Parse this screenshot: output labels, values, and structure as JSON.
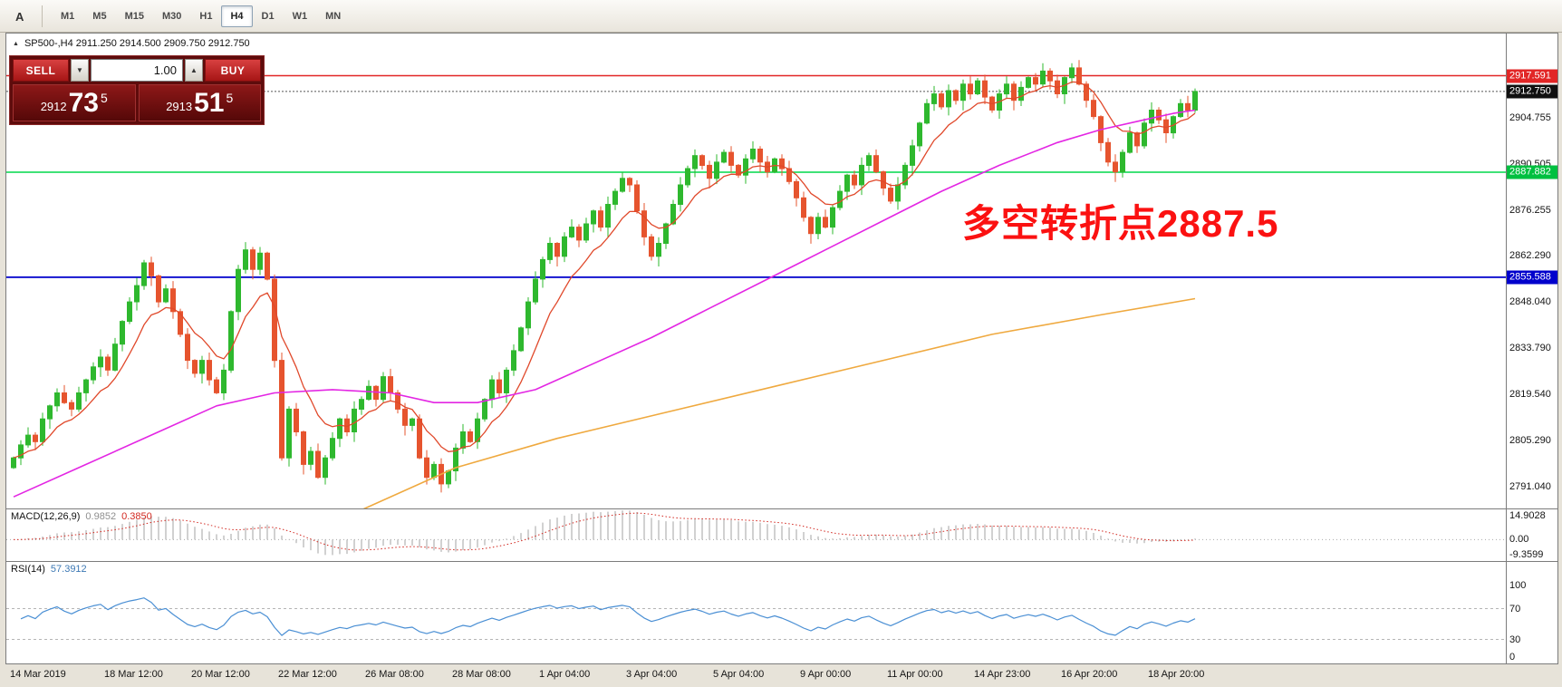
{
  "toolbar": {
    "icons": [
      {
        "name": "charts-candle-icon"
      },
      {
        "name": "indicators-icon"
      },
      {
        "name": "label-a-icon"
      },
      {
        "name": "text-box-icon"
      },
      {
        "name": "draw-objects-icon"
      }
    ],
    "timeframes": [
      {
        "label": "M1",
        "active": false
      },
      {
        "label": "M5",
        "active": false
      },
      {
        "label": "M15",
        "active": false
      },
      {
        "label": "M30",
        "active": false
      },
      {
        "label": "H1",
        "active": false
      },
      {
        "label": "H4",
        "active": true
      },
      {
        "label": "D1",
        "active": false
      },
      {
        "label": "W1",
        "active": false
      },
      {
        "label": "MN",
        "active": false
      }
    ]
  },
  "chart": {
    "symbol_header": {
      "collapse_icon": "▲",
      "text": "SP500-,H4  2911.250 2914.500 2909.750 2912.750"
    },
    "trade_panel": {
      "sell_label": "SELL",
      "buy_label": "BUY",
      "volume": "1.00",
      "down_icon": "▼",
      "up_icon": "▲",
      "bid": {
        "prefix": "2912",
        "pips": "73",
        "sup": "5"
      },
      "ask": {
        "prefix": "2913",
        "pips": "51",
        "sup": "5"
      }
    },
    "annotation": {
      "text": "多空转折点2887.5",
      "color": "#fb1111"
    },
    "price_range": {
      "min": 2785,
      "max": 2930
    },
    "colors": {
      "bull": "#2eb82e",
      "bear": "#e6542e",
      "ma_fast": "#e0482a",
      "ma_mid": "#e326e3",
      "ma_slow": "#efa93f"
    },
    "levels": [
      {
        "label": "2917.591",
        "price": 2917.591,
        "color": "#e22626",
        "badge": "#e22626",
        "width": 1.4,
        "dash": ""
      },
      {
        "label": "2912.750",
        "price": 2912.75,
        "color": "#555555",
        "badge": "#101010",
        "width": 1,
        "dash": "2 2"
      },
      {
        "label": "2887.882",
        "price": 2887.882,
        "color": "#00d84a",
        "badge": "#00c040",
        "width": 1.6,
        "dash": ""
      },
      {
        "label": "2855.588",
        "price": 2855.588,
        "color": "#0000cc",
        "badge": "#0000cc",
        "width": 1.8,
        "dash": ""
      }
    ],
    "price_axis": [
      {
        "text": "2904.755",
        "v": 2904.755
      },
      {
        "text": "2890.505",
        "v": 2890.505
      },
      {
        "text": "2876.255",
        "v": 2876.255
      },
      {
        "text": "2862.290",
        "v": 2862.29
      },
      {
        "text": "2848.040",
        "v": 2848.04
      },
      {
        "text": "2833.790",
        "v": 2833.79
      },
      {
        "text": "2819.540",
        "v": 2819.54
      },
      {
        "text": "2805.290",
        "v": 2805.29
      },
      {
        "text": "2791.040",
        "v": 2791.04
      }
    ]
  },
  "chart_data": {
    "type": "candlestick",
    "symbol": "SP500-",
    "timeframe": "H4",
    "ohlc_header": {
      "open": "2911.250",
      "high": "2914.500",
      "low": "2909.750",
      "close": "2912.750"
    },
    "closes": [
      2800,
      2804,
      2807,
      2805,
      2812,
      2816,
      2820,
      2817,
      2815,
      2820,
      2824,
      2828,
      2831,
      2827,
      2835,
      2842,
      2848,
      2853,
      2860,
      2856,
      2848,
      2852,
      2845,
      2838,
      2830,
      2826,
      2830,
      2824,
      2820,
      2827,
      2845,
      2858,
      2864,
      2858,
      2863,
      2855,
      2830,
      2800,
      2815,
      2808,
      2798,
      2802,
      2794,
      2800,
      2806,
      2812,
      2808,
      2815,
      2818,
      2822,
      2818,
      2825,
      2820,
      2815,
      2810,
      2812,
      2800,
      2794,
      2798,
      2792,
      2796,
      2803,
      2808,
      2805,
      2812,
      2818,
      2824,
      2820,
      2827,
      2833,
      2840,
      2848,
      2855,
      2861,
      2866,
      2862,
      2868,
      2871,
      2867,
      2872,
      2876,
      2871,
      2878,
      2882,
      2886,
      2884,
      2876,
      2868,
      2862,
      2866,
      2872,
      2878,
      2884,
      2889,
      2893,
      2890,
      2886,
      2891,
      2894,
      2890,
      2887,
      2892,
      2895,
      2891,
      2888,
      2892,
      2889,
      2885,
      2880,
      2874,
      2869,
      2874,
      2871,
      2877,
      2882,
      2887,
      2884,
      2890,
      2893,
      2888,
      2883,
      2879,
      2884,
      2890,
      2896,
      2903,
      2909,
      2912,
      2908,
      2913,
      2910,
      2915,
      2912,
      2916,
      2911,
      2907,
      2912,
      2915,
      2910,
      2914,
      2917,
      2915,
      2919,
      2916,
      2912,
      2917,
      2920,
      2915,
      2910,
      2905,
      2897,
      2891,
      2888,
      2894,
      2900,
      2896,
      2903,
      2907,
      2904,
      2900,
      2905,
      2909,
      2907,
      2912.75
    ],
    "ma_mid": [
      [
        0,
        2788
      ],
      [
        10,
        2798
      ],
      [
        20,
        2808
      ],
      [
        28,
        2816
      ],
      [
        36,
        2820
      ],
      [
        44,
        2821
      ],
      [
        52,
        2820
      ],
      [
        58,
        2817
      ],
      [
        64,
        2817
      ],
      [
        72,
        2821
      ],
      [
        80,
        2829
      ],
      [
        88,
        2837
      ],
      [
        96,
        2846
      ],
      [
        104,
        2855
      ],
      [
        112,
        2864
      ],
      [
        120,
        2873
      ],
      [
        128,
        2882
      ],
      [
        136,
        2890
      ],
      [
        144,
        2897
      ],
      [
        150,
        2901
      ],
      [
        156,
        2904
      ],
      [
        160,
        2906
      ],
      [
        163,
        2907
      ]
    ],
    "ma_slow": [
      [
        47,
        2783
      ],
      [
        61,
        2797
      ],
      [
        75,
        2806
      ],
      [
        90,
        2814
      ],
      [
        105,
        2822
      ],
      [
        120,
        2830
      ],
      [
        135,
        2838
      ],
      [
        150,
        2844
      ],
      [
        163,
        2849
      ]
    ]
  },
  "macd": {
    "title": "MACD(12,26,9)",
    "value1": "0.9852",
    "value2": "0.3850",
    "axis": [
      {
        "text": "14.9028",
        "v": 14.9028
      },
      {
        "text": "0.00",
        "v": 0
      },
      {
        "text": "-9.3599",
        "v": -9.3599
      }
    ],
    "draw_max": 17,
    "draw_min": -12
  },
  "rsi": {
    "title": "RSI(14)",
    "value": "57.3912",
    "axis": [
      {
        "text": "100",
        "v": 100
      },
      {
        "text": "70",
        "v": 70
      },
      {
        "text": "30",
        "v": 30
      },
      {
        "text": "0",
        "v": 0
      }
    ],
    "dashed_levels": [
      70,
      30
    ]
  },
  "time_axis": {
    "labels": [
      {
        "text": "14 Mar 2019",
        "i": 0
      },
      {
        "text": "18 Mar 12:00",
        "i": 13
      },
      {
        "text": "20 Mar 12:00",
        "i": 25
      },
      {
        "text": "22 Mar 12:00",
        "i": 37
      },
      {
        "text": "26 Mar 08:00",
        "i": 49
      },
      {
        "text": "28 Mar 08:00",
        "i": 61
      },
      {
        "text": "1 Apr 04:00",
        "i": 73
      },
      {
        "text": "3 Apr 04:00",
        "i": 85
      },
      {
        "text": "5 Apr 04:00",
        "i": 97
      },
      {
        "text": "9 Apr 00:00",
        "i": 109
      },
      {
        "text": "11 Apr 00:00",
        "i": 121
      },
      {
        "text": "14 Apr 23:00",
        "i": 133
      },
      {
        "text": "16 Apr 20:00",
        "i": 145
      },
      {
        "text": "18 Apr 20:00",
        "i": 157
      }
    ]
  }
}
